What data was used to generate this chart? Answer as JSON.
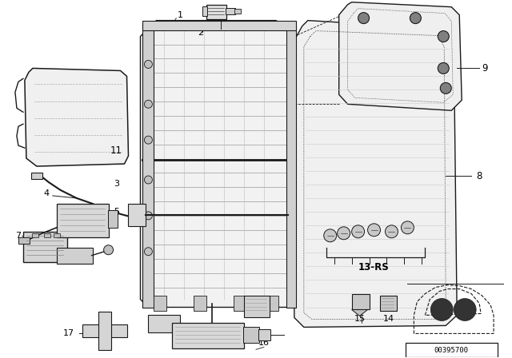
{
  "background_color": "#ffffff",
  "diagram_code": "00395700",
  "line_color": "#1a1a1a",
  "text_color": "#000000",
  "label_fontsize": 8.5,
  "figure_width": 6.4,
  "figure_height": 4.48,
  "dpi": 100
}
